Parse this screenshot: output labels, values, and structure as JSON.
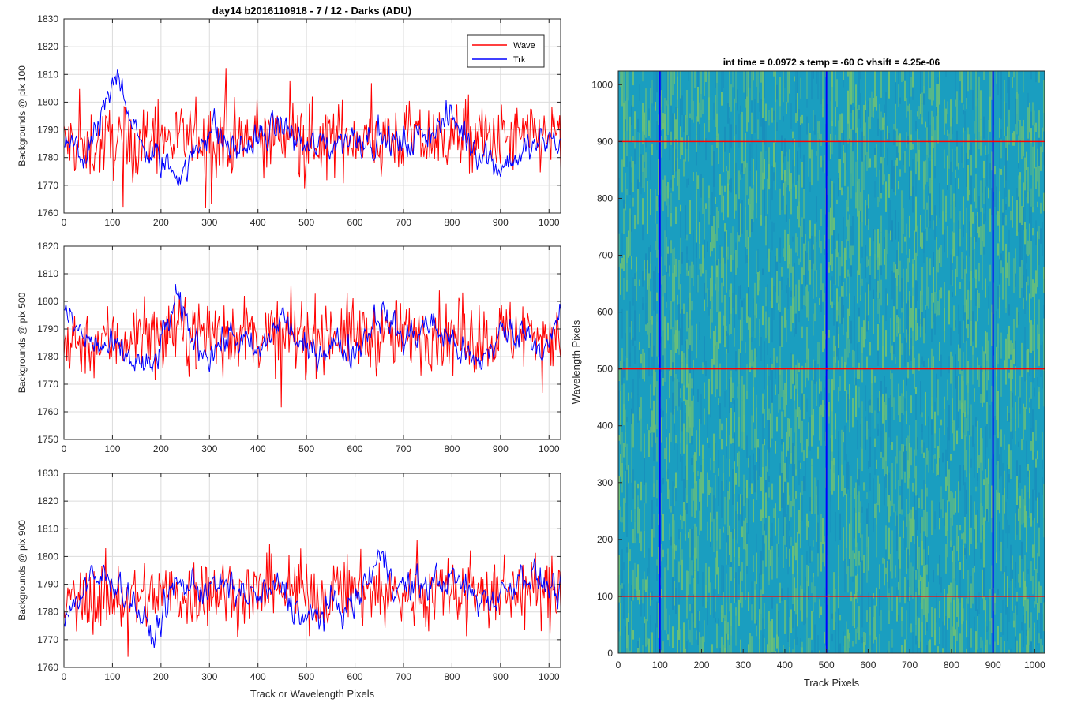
{
  "figure_title": "day14 b2016110918 - 7 / 12 - Darks (ADU)",
  "colors": {
    "wave": "#ff0000",
    "trk": "#0000ff",
    "grid": "#dcdcdc",
    "axis": "#262626"
  },
  "legend": {
    "items": [
      "Wave",
      "Trk"
    ],
    "placement": "top-right"
  },
  "chart_data": [
    {
      "type": "line",
      "title": "day14 b2016110918 - 7 / 12 - Darks (ADU)",
      "xlabel": "",
      "ylabel": "Backgrounds @ pix 100",
      "xlim": [
        0,
        1024
      ],
      "ylim": [
        1760,
        1830
      ],
      "x_ticks": [
        0,
        100,
        200,
        300,
        400,
        500,
        600,
        700,
        800,
        900,
        1000
      ],
      "y_ticks": [
        1760,
        1770,
        1780,
        1790,
        1800,
        1810,
        1820,
        1830
      ],
      "grid": true,
      "legend": "top-right",
      "series": [
        {
          "name": "Wave",
          "color": "#ff0000",
          "x": [
            0,
            50,
            100,
            150,
            200,
            250,
            300,
            350,
            400,
            450,
            500,
            550,
            600,
            650,
            700,
            750,
            800,
            850,
            900,
            950,
            1000,
            1024
          ],
          "y": [
            1785,
            1784,
            1786,
            1785,
            1787,
            1786,
            1788,
            1786,
            1787,
            1788,
            1786,
            1787,
            1788,
            1786,
            1787,
            1786,
            1788,
            1787,
            1786,
            1787,
            1788,
            1787
          ]
        },
        {
          "name": "Trk",
          "color": "#0000ff",
          "x": [
            0,
            50,
            100,
            115,
            150,
            200,
            250,
            300,
            350,
            400,
            450,
            500,
            550,
            600,
            650,
            700,
            750,
            800,
            850,
            900,
            950,
            1000,
            1024
          ],
          "y": [
            1785,
            1780,
            1804,
            1812,
            1786,
            1778,
            1775,
            1792,
            1782,
            1786,
            1792,
            1783,
            1785,
            1788,
            1787,
            1784,
            1790,
            1794,
            1784,
            1777,
            1782,
            1786,
            1785
          ]
        }
      ]
    },
    {
      "type": "line",
      "title": "",
      "xlabel": "",
      "ylabel": "Backgrounds @ pix 500",
      "xlim": [
        0,
        1024
      ],
      "ylim": [
        1750,
        1820
      ],
      "x_ticks": [
        0,
        100,
        200,
        300,
        400,
        500,
        600,
        700,
        800,
        900,
        1000
      ],
      "y_ticks": [
        1750,
        1760,
        1770,
        1780,
        1790,
        1800,
        1810,
        1820
      ],
      "grid": true,
      "series": [
        {
          "name": "Wave",
          "color": "#ff0000",
          "x": [
            0,
            50,
            100,
            150,
            200,
            250,
            300,
            350,
            400,
            450,
            500,
            550,
            600,
            650,
            700,
            750,
            800,
            850,
            900,
            950,
            1000,
            1024
          ],
          "y": [
            1786,
            1785,
            1786,
            1787,
            1788,
            1789,
            1788,
            1789,
            1788,
            1787,
            1788,
            1789,
            1788,
            1787,
            1788,
            1789,
            1788,
            1787,
            1788,
            1789,
            1788,
            1787
          ]
        },
        {
          "name": "Trk",
          "color": "#0000ff",
          "x": [
            0,
            50,
            100,
            150,
            180,
            230,
            270,
            300,
            350,
            400,
            450,
            500,
            550,
            600,
            650,
            700,
            750,
            800,
            850,
            900,
            950,
            1000,
            1024
          ],
          "y": [
            1795,
            1785,
            1782,
            1778,
            1774,
            1800,
            1785,
            1782,
            1788,
            1780,
            1795,
            1780,
            1785,
            1782,
            1797,
            1786,
            1792,
            1786,
            1776,
            1788,
            1790,
            1782,
            1795
          ]
        }
      ]
    },
    {
      "type": "line",
      "title": "",
      "xlabel": "Track or Wavelength Pixels",
      "ylabel": "Backgrounds @ pix 900",
      "xlim": [
        0,
        1024
      ],
      "ylim": [
        1760,
        1830
      ],
      "x_ticks": [
        0,
        100,
        200,
        300,
        400,
        500,
        600,
        700,
        800,
        900,
        1000
      ],
      "y_ticks": [
        1760,
        1770,
        1780,
        1790,
        1800,
        1810,
        1820,
        1830
      ],
      "grid": true,
      "series": [
        {
          "name": "Wave",
          "color": "#ff0000",
          "x": [
            0,
            50,
            100,
            150,
            200,
            250,
            300,
            350,
            400,
            450,
            500,
            550,
            600,
            650,
            700,
            750,
            800,
            850,
            900,
            950,
            1000,
            1024
          ],
          "y": [
            1783,
            1784,
            1786,
            1785,
            1787,
            1786,
            1788,
            1787,
            1786,
            1788,
            1787,
            1786,
            1788,
            1787,
            1786,
            1787,
            1788,
            1786,
            1787,
            1788,
            1786,
            1787
          ]
        },
        {
          "name": "Trk",
          "color": "#0000ff",
          "x": [
            0,
            50,
            100,
            150,
            180,
            230,
            300,
            350,
            400,
            450,
            500,
            550,
            600,
            650,
            700,
            750,
            800,
            850,
            900,
            950,
            1000,
            1024
          ],
          "y": [
            1778,
            1790,
            1793,
            1782,
            1770,
            1790,
            1789,
            1788,
            1785,
            1789,
            1776,
            1782,
            1782,
            1800,
            1788,
            1790,
            1792,
            1785,
            1786,
            1795,
            1789,
            1787
          ]
        }
      ]
    },
    {
      "type": "heatmap",
      "title": "int time = 0.0972 s    temp = -60 C    vhsift = 4.25e-06",
      "xlabel": "Track Pixels",
      "ylabel": "Wavelength Pixels",
      "xlim": [
        0,
        1024
      ],
      "ylim": [
        0,
        1024
      ],
      "x_ticks": [
        0,
        100,
        200,
        300,
        400,
        500,
        600,
        700,
        800,
        900,
        1000
      ],
      "y_ticks": [
        0,
        100,
        200,
        300,
        400,
        500,
        600,
        700,
        800,
        900,
        1000
      ],
      "colors": {
        "base": "#1a9ec0",
        "high": "#8fcf58"
      },
      "overlay_vertical": {
        "color": "#0000ff",
        "x": [
          100,
          500,
          900
        ]
      },
      "overlay_horizontal": {
        "color": "#ff0000",
        "y": [
          100,
          500,
          900
        ]
      }
    }
  ]
}
